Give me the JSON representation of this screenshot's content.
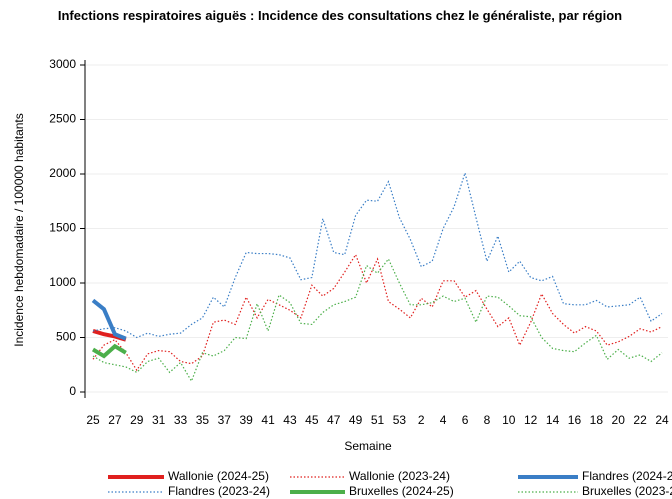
{
  "chart_data": {
    "type": "line",
    "title": "Infections respiratoires aiguës : Incidence des consultations chez le généraliste, par région",
    "x_label": "Semaine",
    "y_label": "Incidence hebdomadaire / 100000 habitants",
    "categories": [
      "25",
      null,
      "27",
      null,
      "29",
      null,
      "31",
      null,
      "33",
      null,
      "35",
      null,
      "37",
      null,
      "39",
      null,
      "41",
      null,
      "43",
      null,
      "45",
      null,
      "47",
      null,
      "49",
      null,
      "51",
      null,
      "53",
      null,
      "2",
      null,
      "4",
      null,
      "6",
      null,
      "8",
      null,
      "10",
      null,
      "12",
      null,
      "14",
      null,
      "16",
      null,
      "18",
      null,
      "20",
      null,
      "22",
      null,
      "24"
    ],
    "ylim": [
      0,
      3000
    ],
    "yticks": [
      0,
      500,
      1000,
      1500,
      2000,
      2500,
      3000
    ],
    "grid": true,
    "legend": "bottom",
    "series": [
      {
        "name": "Wallonie (2024-25)",
        "color": "#e0201e",
        "style": "solid",
        "values": [
          560,
          530,
          510,
          480,
          null,
          null,
          null,
          null,
          null,
          null,
          null,
          null,
          null,
          null,
          null,
          null,
          null,
          null,
          null,
          null,
          null,
          null,
          null,
          null,
          null,
          null,
          null,
          null,
          null,
          null,
          null,
          null,
          null,
          null,
          null,
          null,
          null,
          null,
          null,
          null,
          null,
          null,
          null,
          null,
          null,
          null,
          null,
          null,
          null,
          null,
          null,
          null,
          null
        ]
      },
      {
        "name": "Wallonie (2023-24)",
        "color": "#e0201e",
        "style": "dotted",
        "values": [
          300,
          430,
          480,
          360,
          200,
          350,
          380,
          370,
          280,
          260,
          330,
          640,
          660,
          620,
          870,
          680,
          850,
          800,
          750,
          680,
          980,
          880,
          950,
          1100,
          1260,
          1000,
          1220,
          830,
          760,
          680,
          860,
          780,
          1020,
          1020,
          870,
          930,
          760,
          600,
          680,
          430,
          640,
          900,
          720,
          620,
          540,
          600,
          560,
          430,
          460,
          510,
          580,
          550,
          600
        ]
      },
      {
        "name": "Flandres (2024-25)",
        "color": "#3a7ec6",
        "style": "solid",
        "values": [
          840,
          760,
          530,
          490,
          null,
          null,
          null,
          null,
          null,
          null,
          null,
          null,
          null,
          null,
          null,
          null,
          null,
          null,
          null,
          null,
          null,
          null,
          null,
          null,
          null,
          null,
          null,
          null,
          null,
          null,
          null,
          null,
          null,
          null,
          null,
          null,
          null,
          null,
          null,
          null,
          null,
          null,
          null,
          null,
          null,
          null,
          null,
          null,
          null,
          null,
          null,
          null,
          null
        ]
      },
      {
        "name": "Flandres (2023-24)",
        "color": "#3a7ec6",
        "style": "dotted",
        "values": [
          560,
          580,
          590,
          560,
          500,
          540,
          510,
          530,
          540,
          620,
          680,
          870,
          780,
          1050,
          1280,
          1270,
          1270,
          1260,
          1230,
          1030,
          1050,
          1590,
          1280,
          1260,
          1620,
          1760,
          1750,
          1930,
          1600,
          1400,
          1150,
          1200,
          1500,
          1700,
          2010,
          1600,
          1200,
          1430,
          1100,
          1200,
          1050,
          1020,
          1060,
          810,
          800,
          800,
          840,
          780,
          790,
          800,
          870,
          650,
          720
        ]
      },
      {
        "name": "Bruxelles (2024-25)",
        "color": "#4caf4a",
        "style": "solid",
        "values": [
          390,
          330,
          420,
          360,
          null,
          null,
          null,
          null,
          null,
          null,
          null,
          null,
          null,
          null,
          null,
          null,
          null,
          null,
          null,
          null,
          null,
          null,
          null,
          null,
          null,
          null,
          null,
          null,
          null,
          null,
          null,
          null,
          null,
          null,
          null,
          null,
          null,
          null,
          null,
          null,
          null,
          null,
          null,
          null,
          null,
          null,
          null,
          null,
          null,
          null,
          null,
          null,
          null
        ]
      },
      {
        "name": "Bruxelles (2023-24)",
        "color": "#4caf4a",
        "style": "dotted",
        "values": [
          330,
          270,
          250,
          230,
          180,
          280,
          310,
          180,
          270,
          100,
          360,
          330,
          380,
          500,
          490,
          810,
          560,
          890,
          820,
          630,
          620,
          730,
          800,
          830,
          870,
          1160,
          1090,
          1220,
          1000,
          800,
          800,
          820,
          880,
          830,
          860,
          640,
          880,
          870,
          790,
          700,
          690,
          500,
          400,
          380,
          370,
          450,
          520,
          300,
          390,
          310,
          340,
          280,
          360
        ]
      }
    ]
  }
}
